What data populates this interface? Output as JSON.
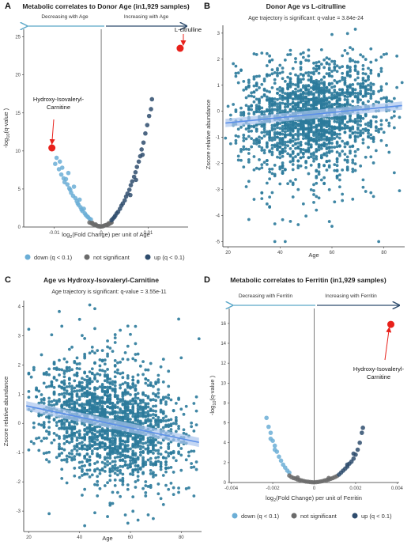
{
  "panels": [
    {
      "letter": "A",
      "title": "Metabolic correlates to Donor Age (in1,929 samples)",
      "left_arrow_label": "Decreasing with Age",
      "right_arrow_label": "Increasing with Age",
      "legend": [
        "down (q < 0.1)",
        "not significant",
        "up (q < 0.1)"
      ]
    },
    {
      "letter": "B",
      "title": "Donor Age vs L-citrulline",
      "subtitle": "Age trajectory is significant: q-value = 3.84e-24"
    },
    {
      "letter": "C",
      "title": "Age vs Hydroxy-Isovaleryl-Carnitine",
      "subtitle": "Age trajectory is significant: q-value = 3.55e-11"
    },
    {
      "letter": "D",
      "title": "Metabolic correlates to Ferritin (in1,929 samples)",
      "left_arrow_label": "Decreasing with Ferritin",
      "right_arrow_label": "Increasing with Ferritin",
      "legend": [
        "down (q < 0.1)",
        "not significant",
        "up (q < 0.1)"
      ]
    }
  ],
  "colors": {
    "down": "#6BAED6",
    "not_significant": "#6B6B6B",
    "up": "#2E4C6D",
    "highlight": "#E8211B",
    "scatter_point": "#2B7A9B",
    "trend_line": "#5B8FE8",
    "trend_band": "#A9C4EE",
    "left_arrow": "#5AA7C8",
    "right_arrow": "#2E4C6D"
  },
  "chart_data": [
    {
      "panel": "A",
      "type": "scatter",
      "title": "Metabolic correlates to Donor Age (in1,929 samples)",
      "xlabel": "log2(Fold Change) per unit of Age",
      "ylabel": "-log10(q-value )",
      "xlim": [
        -0.0165,
        0.0185
      ],
      "ylim": [
        0,
        26
      ],
      "x_ticks": [
        "-0.01",
        "0",
        "0.01"
      ],
      "y_ticks": [
        "0",
        "5",
        "10",
        "15",
        "20",
        "25"
      ],
      "grid": false,
      "series": [
        {
          "name": "down (q < 0.1)",
          "points": [
            [
              -0.0105,
              10.4
            ],
            [
              -0.0098,
              8.3
            ],
            [
              -0.0095,
              9.1
            ],
            [
              -0.009,
              7.6
            ],
            [
              -0.0088,
              8.6
            ],
            [
              -0.0085,
              6.9
            ],
            [
              -0.0083,
              7.8
            ],
            [
              -0.008,
              6.4
            ],
            [
              -0.0078,
              5.9
            ],
            [
              -0.0075,
              6.3
            ],
            [
              -0.0072,
              5.6
            ],
            [
              -0.007,
              7.1
            ],
            [
              -0.0068,
              5.1
            ],
            [
              -0.0066,
              4.9
            ],
            [
              -0.0064,
              4.5
            ],
            [
              -0.006,
              4.1
            ],
            [
              -0.0058,
              5.3
            ],
            [
              -0.0055,
              3.8
            ],
            [
              -0.0052,
              3.4
            ],
            [
              -0.005,
              3.1
            ],
            [
              -0.0048,
              2.9
            ],
            [
              -0.0046,
              3.6
            ],
            [
              -0.0044,
              2.6
            ],
            [
              -0.0042,
              2.3
            ],
            [
              -0.004,
              2.1
            ],
            [
              -0.0037,
              2.4
            ],
            [
              -0.0035,
              1.8
            ],
            [
              -0.0033,
              1.6
            ],
            [
              -0.003,
              1.4
            ],
            [
              -0.0028,
              1.3
            ],
            [
              -0.0025,
              1.1
            ],
            [
              -0.0022,
              1.0
            ]
          ]
        },
        {
          "name": "not significant",
          "points": [
            [
              -0.0025,
              0.6
            ],
            [
              -0.0021,
              0.5
            ],
            [
              -0.0018,
              0.4
            ],
            [
              -0.0015,
              0.3
            ],
            [
              -0.0012,
              0.35
            ],
            [
              -0.001,
              0.2
            ],
            [
              -0.0008,
              0.15
            ],
            [
              -0.0006,
              0.1
            ],
            [
              -0.0004,
              0.12
            ],
            [
              -0.0002,
              0.05
            ],
            [
              0,
              0.08
            ],
            [
              0.0003,
              0.1
            ],
            [
              0.0005,
              0.15
            ],
            [
              0.0007,
              0.2
            ],
            [
              0.001,
              0.25
            ],
            [
              0.0012,
              0.3
            ],
            [
              0.0015,
              0.35
            ],
            [
              0.0018,
              0.45
            ],
            [
              0.002,
              0.55
            ],
            [
              0.0022,
              0.6
            ],
            [
              -0.0019,
              0.55
            ],
            [
              0.0016,
              0.5
            ]
          ]
        },
        {
          "name": "up (q < 0.1)",
          "points": [
            [
              0.0022,
              0.9
            ],
            [
              0.0025,
              1.1
            ],
            [
              0.0028,
              1.3
            ],
            [
              0.003,
              1.5
            ],
            [
              0.0033,
              1.8
            ],
            [
              0.0036,
              2.0
            ],
            [
              0.004,
              2.4
            ],
            [
              0.0043,
              2.8
            ],
            [
              0.0046,
              3.1
            ],
            [
              0.005,
              3.5
            ],
            [
              0.0053,
              4.0
            ],
            [
              0.0056,
              4.4
            ],
            [
              0.006,
              4.9
            ],
            [
              0.0063,
              5.5
            ],
            [
              0.0066,
              6.0
            ],
            [
              0.007,
              6.6
            ],
            [
              0.0073,
              7.2
            ],
            [
              0.0076,
              7.9
            ],
            [
              0.008,
              8.6
            ],
            [
              0.0083,
              9.3
            ],
            [
              0.0086,
              10.2
            ],
            [
              0.009,
              11.1
            ],
            [
              0.0094,
              12.3
            ],
            [
              0.0098,
              13.4
            ],
            [
              0.0102,
              14.6
            ],
            [
              0.0106,
              15.5
            ],
            [
              0.0108,
              16.8
            ],
            [
              0.0074,
              6.2
            ],
            [
              0.0062,
              4.2
            ],
            [
              0.0088,
              9.5
            ]
          ]
        }
      ],
      "highlights": [
        {
          "label": "L-citrulline",
          "x": 0.0168,
          "y": 23.5
        },
        {
          "label": "Hydroxy-Isovaleryl-Carnitine",
          "label_lines": [
            "Hydroxy-Isovaleryl-",
            "Carnitine"
          ],
          "x": -0.0105,
          "y": 10.4
        }
      ]
    },
    {
      "panel": "B",
      "type": "scatter",
      "title": "Donor Age vs L-citrulline",
      "xlabel": "Age",
      "ylabel": "Zscore relative abundance",
      "xlim": [
        18,
        88
      ],
      "ylim": [
        -5.2,
        3.3
      ],
      "x_ticks": [
        "20",
        "40",
        "60",
        "80"
      ],
      "y_ticks": [
        "-5",
        "-4",
        "-3",
        "-2",
        "-1",
        "0",
        "1",
        "2",
        "3"
      ],
      "n_points": 1929,
      "trend": {
        "x": [
          19,
          87
        ],
        "y": [
          -0.45,
          0.22
        ],
        "band_halfwidth": 0.1
      },
      "grid": false
    },
    {
      "panel": "C",
      "type": "scatter",
      "title": "Age vs Hydroxy-Isovaleryl-Carnitine",
      "xlabel": "Age",
      "ylabel": "Zscore relative abundance",
      "xlim": [
        18,
        88
      ],
      "ylim": [
        -3.7,
        4.2
      ],
      "x_ticks": [
        "20",
        "40",
        "60",
        "80"
      ],
      "y_ticks": [
        "-3",
        "-2",
        "-1",
        "0",
        "1",
        "2",
        "3",
        "4"
      ],
      "n_points": 1929,
      "trend": {
        "x": [
          19,
          87
        ],
        "y": [
          0.6,
          -0.65
        ],
        "band_halfwidth": 0.1
      },
      "grid": false
    },
    {
      "panel": "D",
      "type": "scatter",
      "title": "Metabolic correlates to Ferritin (in1,929 samples)",
      "xlabel": "log2(Fold Change) per unit of Ferritin",
      "ylabel": "-log10(q-value )",
      "xlim": [
        -0.0041,
        0.0041
      ],
      "ylim": [
        0,
        17.5
      ],
      "x_ticks": [
        "-0.004",
        "-0.002",
        "0",
        "0.002",
        "0.004"
      ],
      "y_ticks": [
        "0",
        "2",
        "4",
        "6",
        "8",
        "10",
        "12",
        "14",
        "16"
      ],
      "grid": false,
      "series": [
        {
          "name": "down (q < 0.1)",
          "points": [
            [
              -0.0023,
              6.5
            ],
            [
              -0.0022,
              5.6
            ],
            [
              -0.0021,
              5.0
            ],
            [
              -0.002,
              4.2
            ],
            [
              -0.0019,
              3.7
            ],
            [
              -0.0018,
              3.1
            ],
            [
              -0.0017,
              2.6
            ],
            [
              -0.0016,
              2.2
            ],
            [
              -0.0015,
              1.8
            ],
            [
              -0.0014,
              1.5
            ],
            [
              -0.0013,
              1.2
            ],
            [
              -0.0012,
              1.0
            ],
            [
              -0.0019,
              3.3
            ],
            [
              -0.0021,
              4.4
            ]
          ]
        },
        {
          "name": "not significant",
          "points": [
            [
              -0.0012,
              0.7
            ],
            [
              -0.0011,
              0.55
            ],
            [
              -0.001,
              0.45
            ],
            [
              -0.0009,
              0.4
            ],
            [
              -0.0008,
              0.3
            ],
            [
              -0.0007,
              0.25
            ],
            [
              -0.0006,
              0.2
            ],
            [
              -0.0005,
              0.15
            ],
            [
              -0.0004,
              0.1
            ],
            [
              -0.0003,
              0.08
            ],
            [
              -0.0002,
              0.05
            ],
            [
              -0.0001,
              0.03
            ],
            [
              0,
              0.02
            ],
            [
              0.0001,
              0.04
            ],
            [
              0.0002,
              0.06
            ],
            [
              0.0003,
              0.1
            ],
            [
              0.0004,
              0.14
            ],
            [
              0.0005,
              0.2
            ],
            [
              0.0006,
              0.25
            ],
            [
              0.0007,
              0.3
            ],
            [
              0.0008,
              0.38
            ],
            [
              0.0009,
              0.45
            ],
            [
              0.001,
              0.55
            ],
            [
              0.0011,
              0.65
            ],
            [
              -0.0008,
              0.5
            ],
            [
              0.0007,
              0.45
            ]
          ]
        },
        {
          "name": "up (q < 0.1)",
          "points": [
            [
              0.0012,
              0.8
            ],
            [
              0.0013,
              1.0
            ],
            [
              0.0014,
              1.2
            ],
            [
              0.0015,
              1.4
            ],
            [
              0.0016,
              1.6
            ],
            [
              0.0017,
              1.9
            ],
            [
              0.0018,
              2.1
            ],
            [
              0.0019,
              2.4
            ],
            [
              0.002,
              2.8
            ],
            [
              0.0021,
              3.3
            ],
            [
              0.0022,
              4.0
            ],
            [
              0.0023,
              5.0
            ],
            [
              0.00235,
              5.5
            ],
            [
              0.0016,
              1.8
            ],
            [
              0.0019,
              2.9
            ]
          ]
        }
      ],
      "highlights": [
        {
          "label": "Hydroxy-Isovaleryl-Carnitine",
          "label_lines": [
            "Hydroxy-Isovaleryl-",
            "Carnitine"
          ],
          "x": 0.0037,
          "y": 15.9
        }
      ]
    }
  ]
}
